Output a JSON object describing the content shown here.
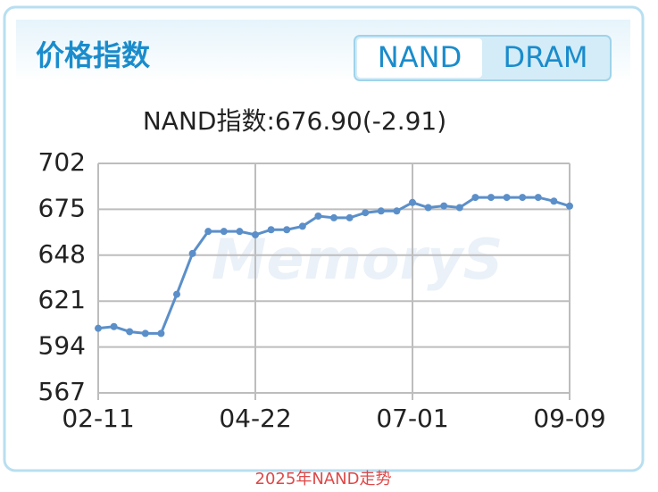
{
  "header": {
    "title": "价格指数",
    "tabs": [
      "NAND",
      "DRAM"
    ],
    "active_tab": 0
  },
  "chart_data": {
    "type": "line",
    "title": "NAND指数:676.90(-2.91)",
    "watermark": "MemoryS",
    "categories": [
      "02-11",
      null,
      null,
      null,
      null,
      null,
      null,
      null,
      null,
      null,
      "04-22",
      null,
      null,
      null,
      null,
      null,
      null,
      null,
      null,
      null,
      "07-01",
      null,
      null,
      null,
      null,
      null,
      null,
      null,
      null,
      null,
      "09-09"
    ],
    "series": [
      {
        "name": "NAND",
        "color": "#5b8fc9",
        "values": [
          605,
          606,
          603,
          602,
          602,
          625,
          649,
          662,
          662,
          662,
          660,
          663,
          663,
          665,
          671,
          670,
          670,
          673,
          674,
          674,
          679,
          676,
          677,
          676,
          682,
          682,
          682,
          682,
          682,
          679.8,
          676.9
        ]
      }
    ],
    "ylim": [
      567,
      702
    ],
    "yticks": [
      567,
      594,
      621,
      648,
      675,
      702
    ],
    "grid": true
  },
  "caption": "2025年NAND走势"
}
